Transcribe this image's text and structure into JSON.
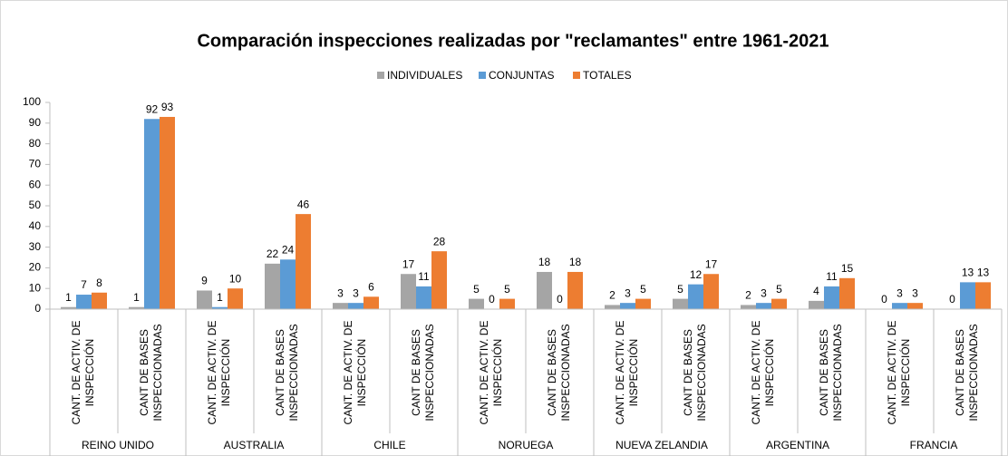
{
  "chart_data": {
    "type": "bar",
    "title": "Comparación inspecciones realizadas por \"reclamantes\" entre 1961-2021",
    "groups": [
      "REINO UNIDO",
      "AUSTRALIA",
      "CHILE",
      "NORUEGA",
      "NUEVA ZELANDIA",
      "ARGENTINA",
      "FRANCIA"
    ],
    "categories": [
      [
        "CANT. DE ACTIV. DE",
        "INSPECCIÓN"
      ],
      [
        "CANT DE BASES",
        "INSPECCIONADAS"
      ],
      [
        "CANT. DE ACTIV. DE",
        "INSPECCIÓN"
      ],
      [
        "CANT DE BASES",
        "INSPECCIONADAS"
      ],
      [
        "CANT. DE ACTIV. DE",
        "INSPECCIÓN"
      ],
      [
        "CANT DE BASES",
        "INSPECCIONADAS"
      ],
      [
        "CANT. DE ACTIV. DE",
        "INSPECCIÓN"
      ],
      [
        "CANT DE BASES",
        "INSPECCIONADAS"
      ],
      [
        "CANT. DE ACTIV. DE",
        "INSPECCIÓN"
      ],
      [
        "CANT DE BASES",
        "INSPECCIONADAS"
      ],
      [
        "CANT. DE ACTIV. DE",
        "INSPECCIÓN"
      ],
      [
        "CANT DE BASES",
        "INSPECCIONADAS"
      ],
      [
        "CANT. DE ACTIV. DE",
        "INSPECCIÓN"
      ],
      [
        "CANT DE BASES",
        "INSPECCIONADAS"
      ]
    ],
    "series": [
      {
        "name": "INDIVIDUALES",
        "color": "#a5a5a5",
        "values": [
          1,
          1,
          9,
          22,
          3,
          17,
          5,
          18,
          2,
          5,
          2,
          4,
          0,
          0
        ]
      },
      {
        "name": "CONJUNTAS",
        "color": "#5b9bd5",
        "values": [
          7,
          92,
          1,
          24,
          3,
          11,
          0,
          0,
          3,
          12,
          3,
          11,
          3,
          13
        ]
      },
      {
        "name": "TOTALES",
        "color": "#ed7d31",
        "values": [
          8,
          93,
          10,
          46,
          6,
          28,
          5,
          18,
          5,
          17,
          5,
          15,
          3,
          13
        ]
      }
    ],
    "ylim": [
      0,
      100
    ],
    "yticks": [
      0,
      10,
      20,
      30,
      40,
      50,
      60,
      70,
      80,
      90,
      100
    ],
    "legend": "top",
    "grid": false
  }
}
